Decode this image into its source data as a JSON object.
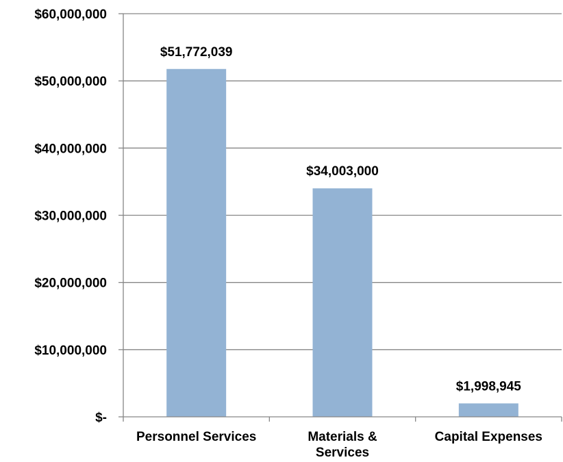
{
  "chart_data": {
    "type": "bar",
    "categories": [
      "Personnel Services",
      "Materials & Services",
      "Capital Expenses"
    ],
    "category_label_lines": [
      [
        "Personnel Services"
      ],
      [
        "Materials &",
        "Services"
      ],
      [
        "Capital Expenses"
      ]
    ],
    "values": [
      51772039,
      34003000,
      1998945
    ],
    "data_labels": [
      "$51,772,039",
      "$34,003,000",
      "$1,998,945"
    ],
    "ylim": [
      0,
      60000000
    ],
    "yticks": [
      0,
      10000000,
      20000000,
      30000000,
      40000000,
      50000000,
      60000000
    ],
    "ytick_labels": [
      "$-",
      "$10,000,000",
      "$20,000,000",
      "$30,000,000",
      "$40,000,000",
      "$50,000,000",
      "$60,000,000"
    ],
    "grid": true,
    "bar_color": "#93B3D4",
    "grid_color": "#868686"
  }
}
